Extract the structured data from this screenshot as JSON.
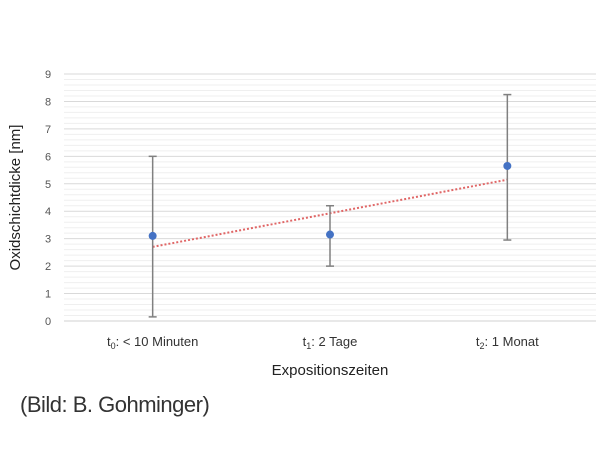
{
  "chart_data": {
    "type": "scatter",
    "title": "",
    "xlabel": "Expositionszeiten",
    "ylabel": "Oxidschichtdicke [nm]",
    "ylim": [
      0,
      9
    ],
    "yticks": [
      0,
      1,
      2,
      3,
      4,
      5,
      6,
      7,
      8,
      9
    ],
    "categories": [
      {
        "t": "t",
        "sub": "0",
        "rest": ": < 10 Minuten"
      },
      {
        "t": "t",
        "sub": "1",
        "rest": ": 2 Tage"
      },
      {
        "t": "t",
        "sub": "2",
        "rest": ": 1 Monat"
      }
    ],
    "series": [
      {
        "values": [
          3.1,
          3.15,
          5.65
        ],
        "error_low": [
          0.15,
          2.0,
          2.95
        ],
        "error_high": [
          6.0,
          4.2,
          8.25
        ],
        "color": "#4472C4",
        "error_bar_color": "#808080"
      }
    ],
    "trendline": {
      "type": "linear",
      "y_start": 2.7,
      "y_end": 5.15,
      "color": "#E06666",
      "style": "dotted"
    },
    "grid": true,
    "legend": "none"
  },
  "credit": "(Bild: B. Gohminger)"
}
